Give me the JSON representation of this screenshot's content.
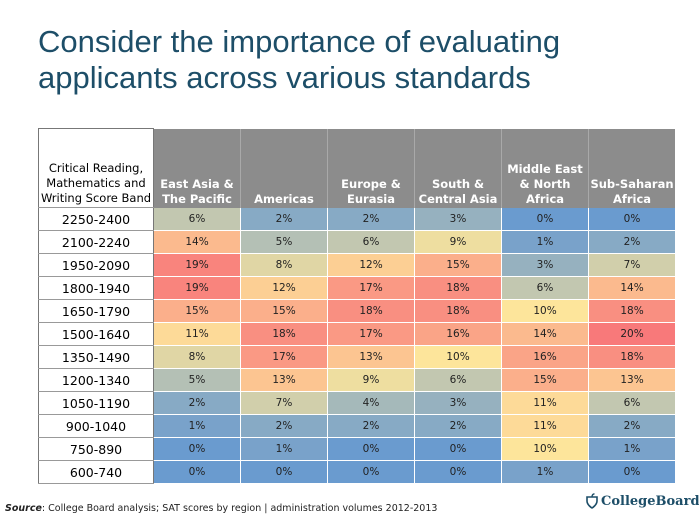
{
  "title": "Consider the importance of evaluating applicants across various standards",
  "chart_data": {
    "type": "heatmap",
    "title": "Consider the importance of evaluating applicants across various standards",
    "row_header": "Critical Reading, Mathematics and Writing Score Band",
    "columns": [
      "East Asia & The Pacific",
      "Americas",
      "Europe & Eurasia",
      "South & Central Asia",
      "Middle East & North Africa",
      "Sub-Saharan Africa"
    ],
    "rows": [
      "2250-2400",
      "2100-2240",
      "1950-2090",
      "1800-1940",
      "1650-1790",
      "1500-1640",
      "1350-1490",
      "1200-1340",
      "1050-1190",
      "900-1040",
      "750-890",
      "600-740"
    ],
    "values": [
      [
        6,
        2,
        2,
        3,
        0,
        0
      ],
      [
        14,
        5,
        6,
        9,
        1,
        2
      ],
      [
        19,
        8,
        12,
        15,
        3,
        7
      ],
      [
        19,
        12,
        17,
        18,
        6,
        14
      ],
      [
        15,
        15,
        18,
        18,
        10,
        18
      ],
      [
        11,
        18,
        17,
        16,
        14,
        20
      ],
      [
        8,
        17,
        13,
        10,
        16,
        18
      ],
      [
        5,
        13,
        9,
        6,
        15,
        13
      ],
      [
        2,
        7,
        4,
        3,
        11,
        6
      ],
      [
        1,
        2,
        2,
        2,
        11,
        2
      ],
      [
        0,
        1,
        0,
        0,
        10,
        1
      ],
      [
        0,
        0,
        0,
        0,
        1,
        0
      ]
    ],
    "value_suffix": "%",
    "color_scale": {
      "low": "#6a9bcf",
      "mid": "#fde59b",
      "high": "#f8797a"
    },
    "header_background": "#8c8c8c"
  },
  "footer": {
    "source_label": "Source",
    "source_text": ": College Board analysis; SAT scores by region | administration volumes 2012-2013",
    "logo_text": "CollegeBoard"
  }
}
